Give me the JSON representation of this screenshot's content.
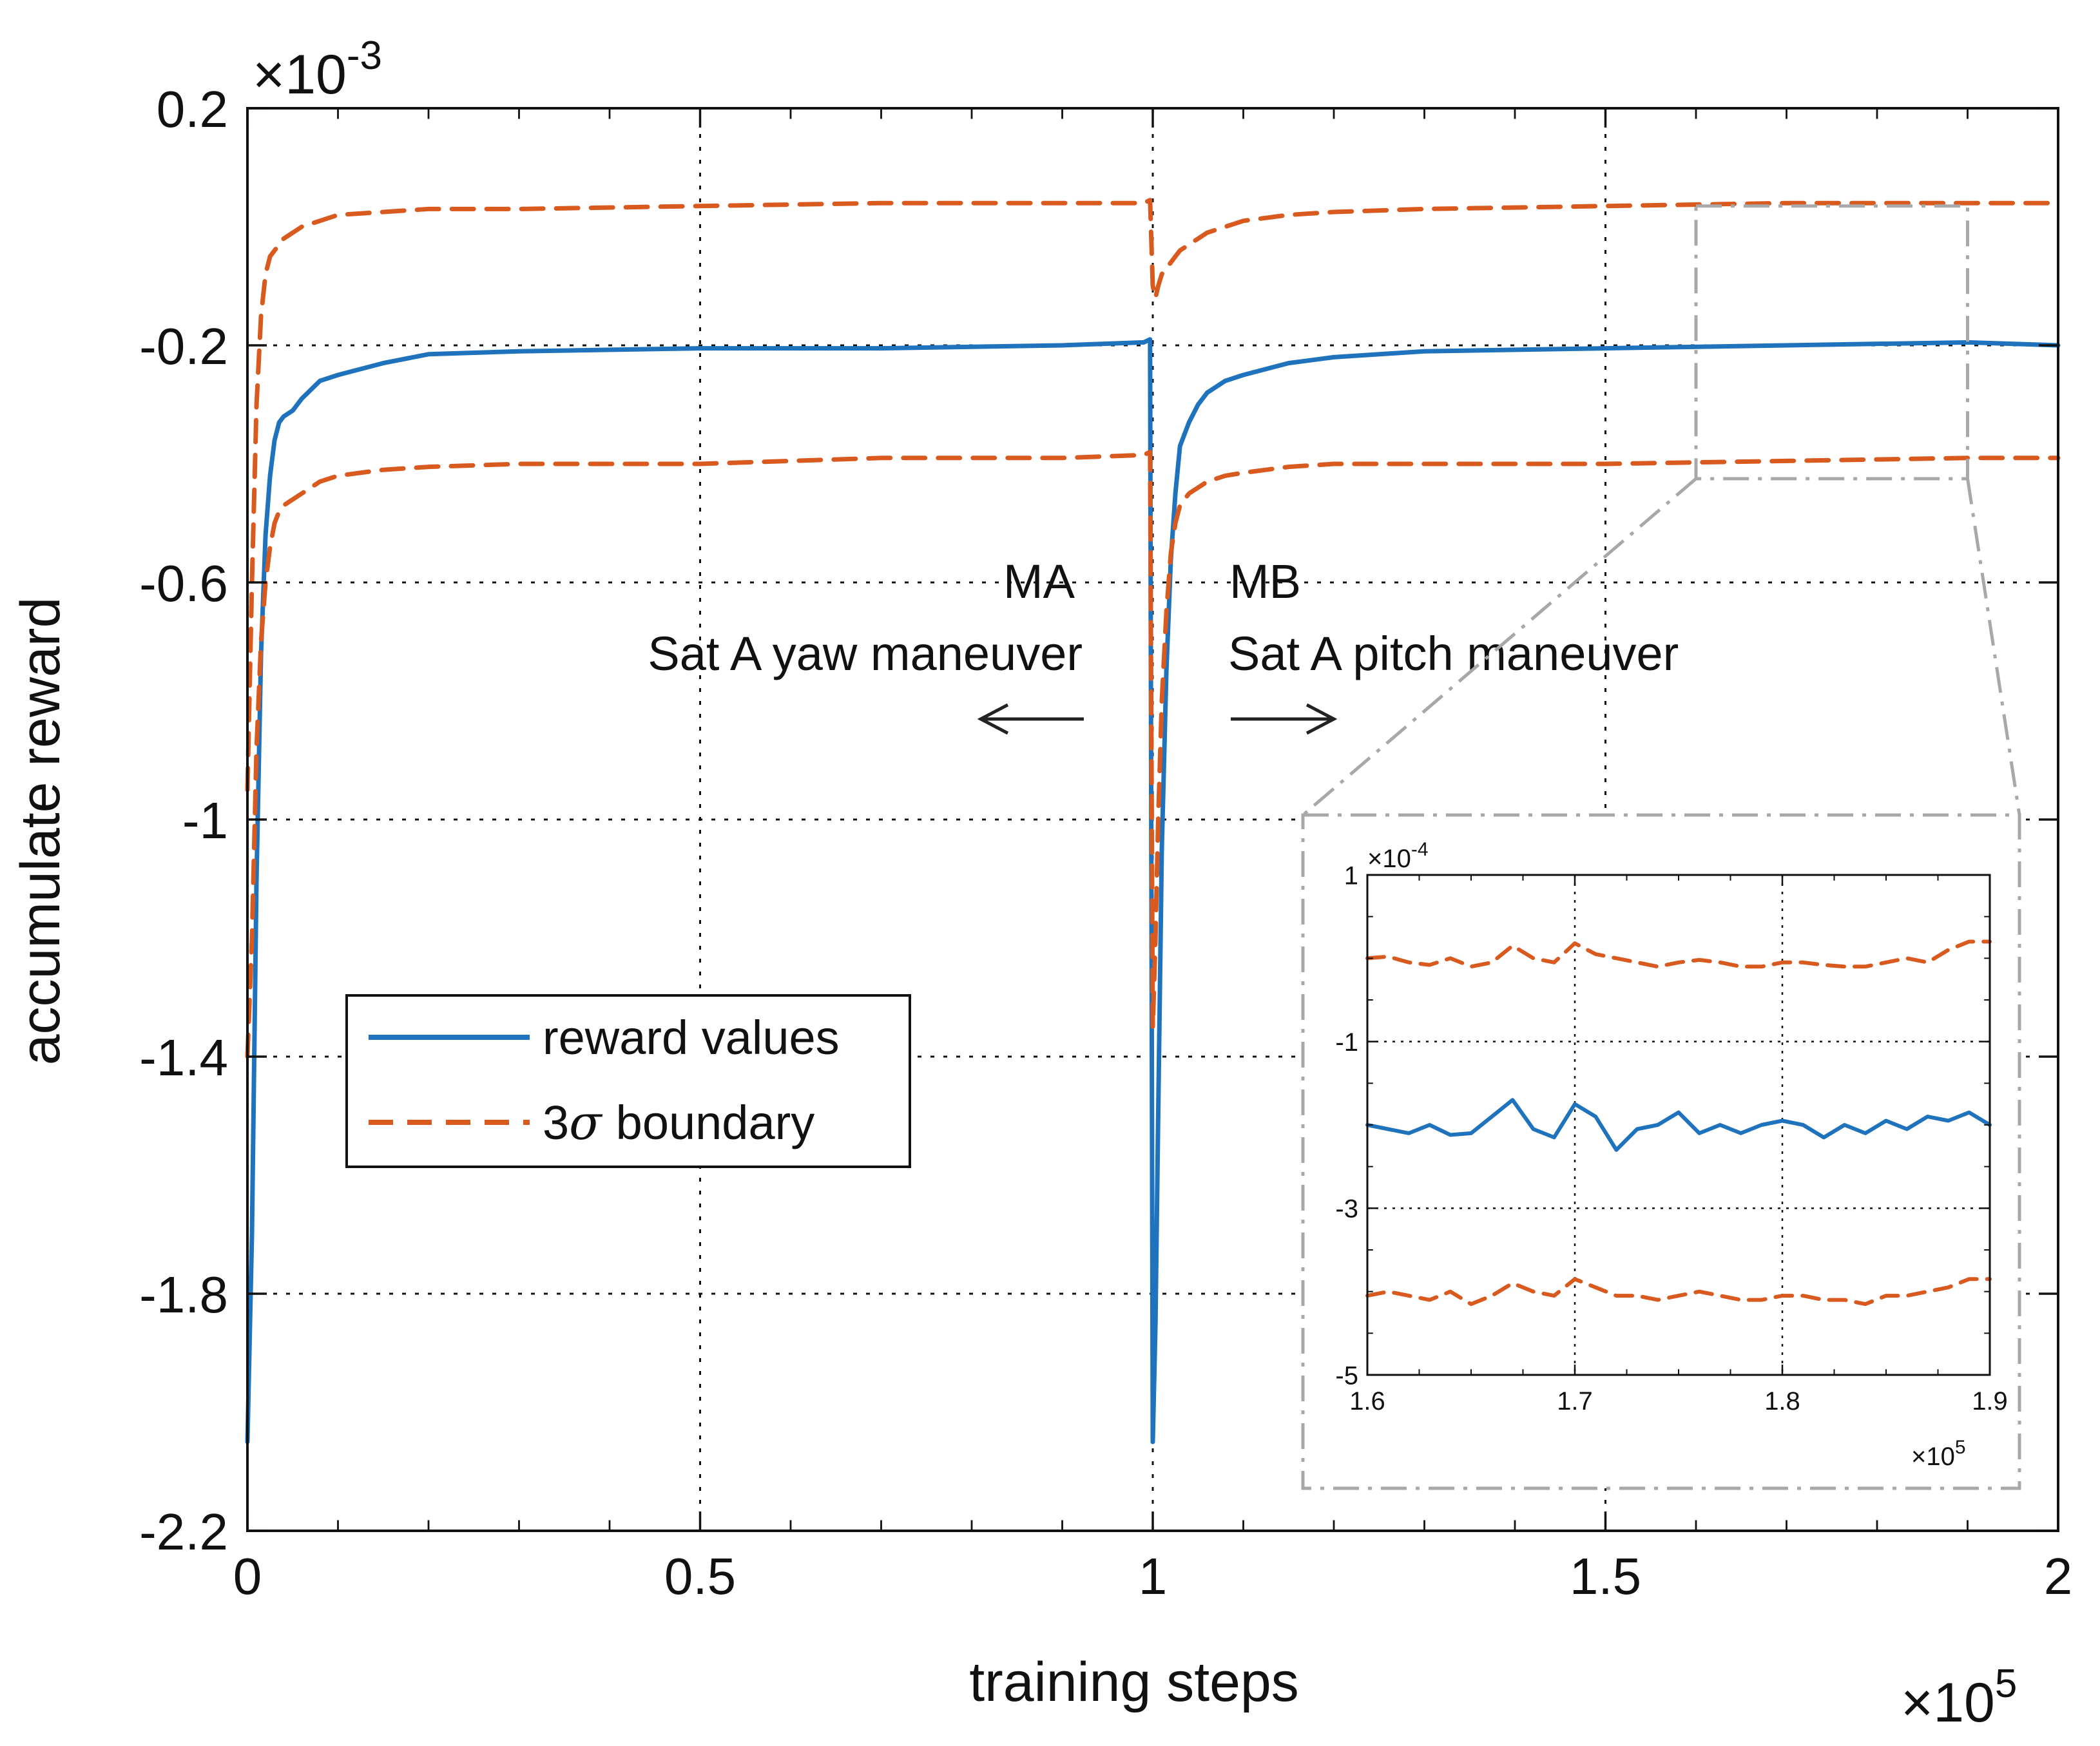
{
  "figure": {
    "xlabel": "training steps",
    "ylabel": "accumulate reward",
    "x_exponent": "×10",
    "x_exponent_power": "5",
    "y_exponent": "×10",
    "y_exponent_power": "-3"
  },
  "annotations": {
    "ma_label": "MA",
    "ma_text": "Sat A yaw maneuver",
    "mb_label": "MB",
    "mb_text": "Sat A pitch maneuver"
  },
  "legend": {
    "reward_label": "reward values",
    "boundary_prefix": "3",
    "boundary_sigma": "σ",
    "boundary_suffix": "boundary"
  },
  "colors": {
    "reward": "#1f73bd",
    "boundary": "#d95a1f",
    "axis": "#111111",
    "zoom_box": "#a8a8a8"
  },
  "chart_data": [
    {
      "name": "main",
      "type": "line",
      "xlabel": "training steps",
      "ylabel": "accumulate reward",
      "x_scale": "1e5",
      "y_scale": "1e-3",
      "xlim": [
        0,
        2
      ],
      "ylim": [
        -2.2,
        0.2
      ],
      "xticks": [
        0,
        0.5,
        1,
        1.5,
        2
      ],
      "xtick_labels": [
        "0",
        "0.5",
        "1",
        "1.5",
        "2"
      ],
      "yticks": [
        0.2,
        -0.2,
        -0.6,
        -1,
        -1.4,
        -1.8,
        -2.2
      ],
      "ytick_labels": [
        "0.2",
        "-0.2",
        "-0.6",
        "-1",
        "-1.4",
        "-1.8",
        "-2.2"
      ],
      "grid": "dotted",
      "legend_position": "middle-left",
      "series": [
        {
          "name": "reward values",
          "style": "solid",
          "x": [
            0,
            0.005,
            0.01,
            0.015,
            0.02,
            0.025,
            0.03,
            0.035,
            0.04,
            0.05,
            0.06,
            0.08,
            0.1,
            0.15,
            0.2,
            0.3,
            0.5,
            0.7,
            0.9,
            0.99,
            0.997,
            1.0,
            1.003,
            1.006,
            1.01,
            1.015,
            1.02,
            1.025,
            1.03,
            1.04,
            1.05,
            1.06,
            1.08,
            1.1,
            1.15,
            1.2,
            1.3,
            1.5,
            1.7,
            1.9,
            2.0
          ],
          "y": [
            -2.05,
            -1.7,
            -1.1,
            -0.72,
            -0.52,
            -0.42,
            -0.36,
            -0.33,
            -0.32,
            -0.31,
            -0.29,
            -0.26,
            -0.25,
            -0.23,
            -0.215,
            -0.21,
            -0.205,
            -0.205,
            -0.2,
            -0.195,
            -0.19,
            -2.05,
            -1.85,
            -1.5,
            -1.05,
            -0.75,
            -0.56,
            -0.45,
            -0.37,
            -0.33,
            -0.3,
            -0.28,
            -0.26,
            -0.25,
            -0.23,
            -0.22,
            -0.21,
            -0.205,
            -0.2,
            -0.195,
            -0.2
          ]
        },
        {
          "name": "3σ boundary (upper)",
          "style": "dashed",
          "x": [
            0,
            0.005,
            0.01,
            0.015,
            0.02,
            0.025,
            0.03,
            0.035,
            0.04,
            0.05,
            0.06,
            0.08,
            0.1,
            0.15,
            0.2,
            0.3,
            0.5,
            0.7,
            0.9,
            0.99,
            0.997,
            1.0,
            1.003,
            1.006,
            1.01,
            1.015,
            1.02,
            1.025,
            1.03,
            1.04,
            1.05,
            1.06,
            1.08,
            1.1,
            1.15,
            1.2,
            1.3,
            1.5,
            1.7,
            1.9,
            2.0
          ],
          "y": [
            -0.95,
            -0.6,
            -0.3,
            -0.15,
            -0.08,
            -0.05,
            -0.04,
            -0.03,
            -0.02,
            -0.01,
            0.0,
            0.01,
            0.02,
            0.025,
            0.03,
            0.03,
            0.035,
            0.04,
            0.04,
            0.04,
            0.045,
            -0.1,
            -0.12,
            -0.1,
            -0.08,
            -0.07,
            -0.06,
            -0.05,
            -0.04,
            -0.03,
            -0.02,
            -0.01,
            0.0,
            0.01,
            0.02,
            0.025,
            0.03,
            0.035,
            0.04,
            0.04,
            0.04
          ]
        },
        {
          "name": "3σ boundary (lower)",
          "style": "dashed",
          "x": [
            0,
            0.005,
            0.01,
            0.015,
            0.02,
            0.025,
            0.03,
            0.035,
            0.04,
            0.05,
            0.06,
            0.08,
            0.1,
            0.15,
            0.2,
            0.3,
            0.5,
            0.7,
            0.9,
            0.99,
            0.997,
            1.0,
            1.003,
            1.006,
            1.01,
            1.015,
            1.02,
            1.025,
            1.03,
            1.04,
            1.05,
            1.06,
            1.08,
            1.1,
            1.15,
            1.2,
            1.3,
            1.5,
            1.7,
            1.9,
            2.0
          ],
          "y": [
            -1.4,
            -1.2,
            -0.88,
            -0.7,
            -0.6,
            -0.54,
            -0.5,
            -0.48,
            -0.47,
            -0.46,
            -0.45,
            -0.43,
            -0.42,
            -0.41,
            -0.405,
            -0.4,
            -0.4,
            -0.39,
            -0.39,
            -0.385,
            -0.38,
            -1.35,
            -1.2,
            -1.0,
            -0.8,
            -0.65,
            -0.55,
            -0.5,
            -0.47,
            -0.45,
            -0.44,
            -0.43,
            -0.42,
            -0.415,
            -0.405,
            -0.4,
            -0.4,
            -0.4,
            -0.395,
            -0.39,
            -0.39
          ]
        }
      ],
      "zoom_region": {
        "xlim": [
          1.6,
          1.9
        ],
        "ylim": [
          -0.425,
          0.035
        ]
      }
    },
    {
      "name": "inset",
      "type": "line",
      "x_scale": "1e5",
      "y_scale": "1e-4",
      "xlim": [
        1.6,
        1.9
      ],
      "ylim": [
        -5,
        1
      ],
      "xticks": [
        1.6,
        1.7,
        1.8,
        1.9
      ],
      "xtick_labels": [
        "1.6",
        "1.7",
        "1.8",
        "1.9"
      ],
      "yticks": [
        1,
        -1,
        -3,
        -5
      ],
      "ytick_labels": [
        "1",
        "-1",
        "-3",
        "-5"
      ],
      "x_exponent": "×10",
      "x_exponent_power": "5",
      "y_exponent": "×10",
      "y_exponent_power": "-4",
      "grid": "dotted",
      "series": [
        {
          "name": "reward values",
          "style": "solid",
          "x": [
            1.6,
            1.61,
            1.62,
            1.63,
            1.64,
            1.65,
            1.66,
            1.67,
            1.68,
            1.69,
            1.7,
            1.71,
            1.72,
            1.73,
            1.74,
            1.75,
            1.76,
            1.77,
            1.78,
            1.79,
            1.8,
            1.81,
            1.82,
            1.83,
            1.84,
            1.85,
            1.86,
            1.87,
            1.88,
            1.89,
            1.9
          ],
          "y": [
            -2.0,
            -2.05,
            -2.1,
            -2.0,
            -2.12,
            -2.1,
            -1.9,
            -1.7,
            -2.05,
            -2.15,
            -1.75,
            -1.9,
            -2.3,
            -2.05,
            -2.0,
            -1.85,
            -2.1,
            -2.0,
            -2.1,
            -2.0,
            -1.95,
            -2.0,
            -2.15,
            -2.0,
            -2.1,
            -1.95,
            -2.05,
            -1.9,
            -1.95,
            -1.85,
            -2.0
          ]
        },
        {
          "name": "3σ boundary (upper)",
          "style": "dashed",
          "x": [
            1.6,
            1.61,
            1.62,
            1.63,
            1.64,
            1.65,
            1.66,
            1.67,
            1.68,
            1.69,
            1.7,
            1.71,
            1.72,
            1.73,
            1.74,
            1.75,
            1.76,
            1.77,
            1.78,
            1.79,
            1.8,
            1.81,
            1.82,
            1.83,
            1.84,
            1.85,
            1.86,
            1.87,
            1.88,
            1.89,
            1.9
          ],
          "y": [
            0.0,
            0.02,
            -0.05,
            -0.08,
            0.0,
            -0.1,
            -0.05,
            0.15,
            0.0,
            -0.05,
            0.18,
            0.05,
            0.0,
            -0.05,
            -0.1,
            -0.05,
            -0.02,
            -0.05,
            -0.1,
            -0.1,
            -0.05,
            -0.05,
            -0.08,
            -0.1,
            -0.1,
            -0.05,
            0.0,
            -0.05,
            0.1,
            0.2,
            0.2
          ]
        },
        {
          "name": "3σ boundary (lower)",
          "style": "dashed",
          "x": [
            1.6,
            1.61,
            1.62,
            1.63,
            1.64,
            1.65,
            1.66,
            1.67,
            1.68,
            1.69,
            1.7,
            1.71,
            1.72,
            1.73,
            1.74,
            1.75,
            1.76,
            1.77,
            1.78,
            1.79,
            1.8,
            1.81,
            1.82,
            1.83,
            1.84,
            1.85,
            1.86,
            1.87,
            1.88,
            1.89,
            1.9
          ],
          "y": [
            -4.05,
            -4.0,
            -4.05,
            -4.1,
            -4.0,
            -4.15,
            -4.05,
            -3.9,
            -4.0,
            -4.05,
            -3.85,
            -3.95,
            -4.05,
            -4.05,
            -4.1,
            -4.05,
            -4.0,
            -4.05,
            -4.1,
            -4.1,
            -4.05,
            -4.05,
            -4.1,
            -4.1,
            -4.15,
            -4.05,
            -4.05,
            -4.0,
            -3.95,
            -3.85,
            -3.85
          ]
        }
      ]
    }
  ]
}
